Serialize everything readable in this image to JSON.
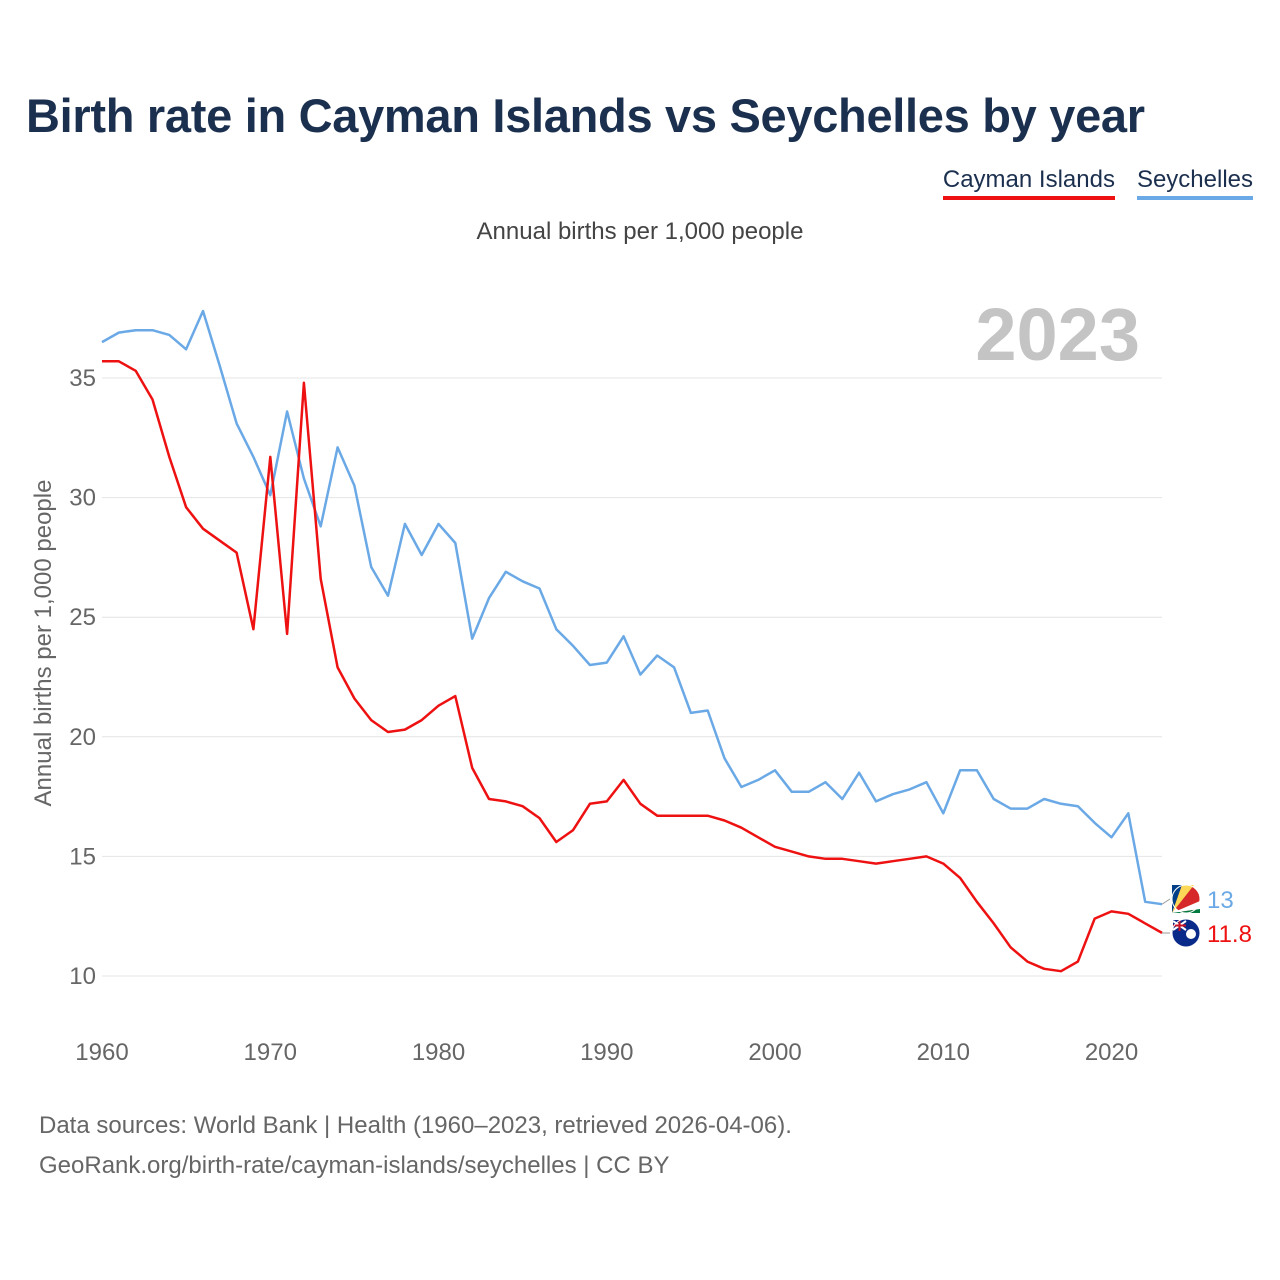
{
  "title": "Birth rate in Cayman Islands vs Seychelles by year",
  "legend": [
    {
      "label": "Cayman Islands",
      "color": "#ee1111"
    },
    {
      "label": "Seychelles",
      "color": "#6aa9e6"
    }
  ],
  "subtitle": "Annual births per 1,000 people",
  "chart_data": {
    "type": "line",
    "title": "Birth rate in Cayman Islands vs Seychelles by year",
    "ylabel": "Annual births per 1,000 people",
    "xlabel": "",
    "xlim": [
      1960,
      2023
    ],
    "ylim": [
      8.5,
      39
    ],
    "x_ticks": [
      1960,
      1970,
      1980,
      1990,
      2000,
      2010,
      2020
    ],
    "y_ticks": [
      10,
      15,
      20,
      25,
      30,
      35
    ],
    "year_label": "2023",
    "x": [
      1960,
      1961,
      1962,
      1963,
      1964,
      1965,
      1966,
      1967,
      1968,
      1969,
      1970,
      1971,
      1972,
      1973,
      1974,
      1975,
      1976,
      1977,
      1978,
      1979,
      1980,
      1981,
      1982,
      1983,
      1984,
      1985,
      1986,
      1987,
      1988,
      1989,
      1990,
      1991,
      1992,
      1993,
      1994,
      1995,
      1996,
      1997,
      1998,
      1999,
      2000,
      2001,
      2002,
      2003,
      2004,
      2005,
      2006,
      2007,
      2008,
      2009,
      2010,
      2011,
      2012,
      2013,
      2014,
      2015,
      2016,
      2017,
      2018,
      2019,
      2020,
      2021,
      2022,
      2023
    ],
    "series": [
      {
        "name": "Cayman Islands",
        "color": "#ee1111",
        "end_label": "11.8",
        "values": [
          35.7,
          35.7,
          35.3,
          34.1,
          31.7,
          29.6,
          28.7,
          28.2,
          27.7,
          24.5,
          31.7,
          24.3,
          34.8,
          26.6,
          22.9,
          21.6,
          20.7,
          20.2,
          20.3,
          20.7,
          21.3,
          21.7,
          18.7,
          17.4,
          17.3,
          17.1,
          16.6,
          15.6,
          16.1,
          17.2,
          17.3,
          18.2,
          17.2,
          16.7,
          16.7,
          16.7,
          16.7,
          16.5,
          16.2,
          15.8,
          15.4,
          15.2,
          15.0,
          14.9,
          14.9,
          14.8,
          14.7,
          14.8,
          14.9,
          15.0,
          14.7,
          14.1,
          13.1,
          12.2,
          11.2,
          10.6,
          10.3,
          10.2,
          10.6,
          12.4,
          12.7,
          12.6,
          12.2,
          11.8
        ]
      },
      {
        "name": "Seychelles",
        "color": "#6aa9e6",
        "end_label": "13",
        "values": [
          36.5,
          36.9,
          37.0,
          37.0,
          36.8,
          36.2,
          37.8,
          35.5,
          33.1,
          31.7,
          30.1,
          33.6,
          30.8,
          28.8,
          32.1,
          30.5,
          27.1,
          25.9,
          28.9,
          27.6,
          28.9,
          28.1,
          24.1,
          25.8,
          26.9,
          26.5,
          26.2,
          24.5,
          23.8,
          23.0,
          23.1,
          24.2,
          22.6,
          23.4,
          22.9,
          21.0,
          21.1,
          19.1,
          17.9,
          18.2,
          18.6,
          17.7,
          17.7,
          18.1,
          17.4,
          18.5,
          17.3,
          17.6,
          17.8,
          18.1,
          16.8,
          18.6,
          18.6,
          17.4,
          17.0,
          17.0,
          17.4,
          17.2,
          17.1,
          16.4,
          15.8,
          16.8,
          13.1,
          13.0
        ]
      }
    ]
  },
  "source_lines": [
    "Data sources: World Bank | Health (1960–2023, retrieved 2026-04-06).",
    "GeoRank.org/birth-rate/cayman-islands/seychelles | CC BY"
  ]
}
